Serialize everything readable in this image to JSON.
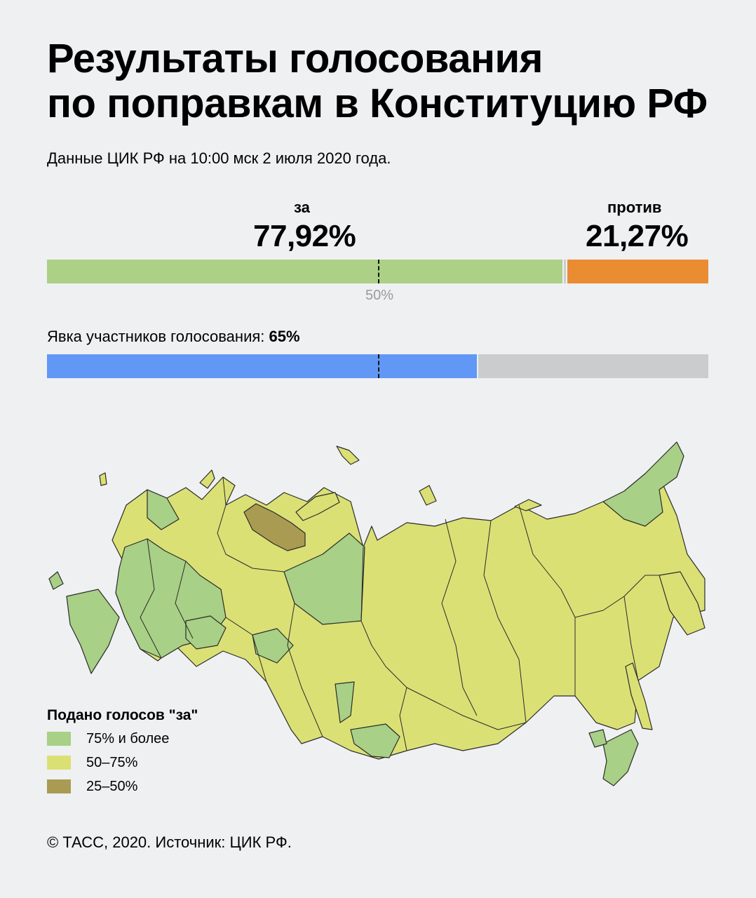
{
  "title": {
    "line1": "Результаты голосования",
    "line2": "по поправкам в Конституцию РФ"
  },
  "subtitle": "Данные ЦИК РФ на 10:00 мск 2 июля 2020 года.",
  "results": {
    "for_label": "за",
    "for_value": "77,92%",
    "for_fraction": 0.7792,
    "against_label": "против",
    "against_value": "21,27%",
    "against_fraction": 0.2127,
    "midpoint_label": "50%"
  },
  "turnout": {
    "label": "Явка участников голосования:",
    "value": "65%",
    "fraction": 0.65
  },
  "colors": {
    "for": "#abd086",
    "against": "#e98c32",
    "invalid": "#cbcccd",
    "turnout": "#6298f5",
    "turnout_rest": "#cbcccd",
    "high": "#a8d086",
    "mid": "#dbe075",
    "low": "#a99c52",
    "border": "#2b2b2b"
  },
  "legend": {
    "title": "Подано голосов \"за\"",
    "items": [
      {
        "label": "75% и более",
        "color": "#a8d086"
      },
      {
        "label": "50–75%",
        "color": "#dbe075"
      },
      {
        "label": "25–50%",
        "color": "#a99c52"
      }
    ]
  },
  "footer": "© ТАСС, 2020. Источник: ЦИК РФ."
}
